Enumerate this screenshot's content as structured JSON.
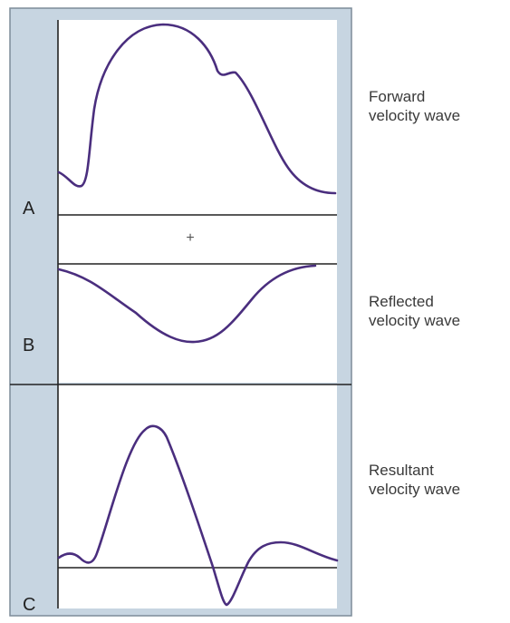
{
  "colors": {
    "frame_fill": "#c7d5e1",
    "frame_stroke": "#7d8c99",
    "plot_fill": "#ffffff",
    "axis": "#222222",
    "curve": "#4a2e7e"
  },
  "panels": [
    {
      "letter": "A",
      "caption_line1": "Forward",
      "caption_line2": "velocity wave"
    },
    {
      "letter": "B",
      "caption_line1": "Reflected",
      "caption_line2": "velocity wave"
    },
    {
      "letter": "C",
      "caption_line1": "Resultant",
      "caption_line2": "velocity wave"
    }
  ],
  "operator": "+"
}
